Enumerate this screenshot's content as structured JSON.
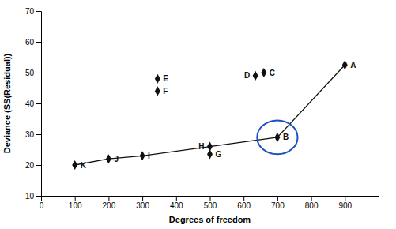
{
  "chart_data": {
    "type": "scatter",
    "xlabel": "Degrees of freedom",
    "ylabel": "Deviance (SS(Residual))",
    "xlim": [
      0,
      1000
    ],
    "ylim": [
      10,
      70
    ],
    "xticks": [
      0,
      100,
      200,
      300,
      400,
      500,
      600,
      700,
      800,
      900
    ],
    "yticks": [
      10,
      20,
      30,
      40,
      50,
      60,
      70
    ],
    "grid": false,
    "series": [
      {
        "type": "scatter",
        "marker": "diamond",
        "color": "#111111",
        "labels": [
          "A",
          "B",
          "C",
          "D",
          "E",
          "F",
          "G",
          "H",
          "I",
          "J",
          "K"
        ],
        "x": [
          900,
          700,
          660,
          635,
          345,
          345,
          500,
          500,
          300,
          200,
          100
        ],
        "values": [
          52.5,
          29,
          50,
          49,
          48,
          44,
          23.5,
          26,
          23,
          22,
          20
        ]
      },
      {
        "type": "line",
        "color": "#111111",
        "x": [
          100,
          200,
          300,
          500,
          700,
          900
        ],
        "values": [
          20,
          22,
          23,
          26,
          29,
          52.5
        ]
      }
    ],
    "annotations": [
      {
        "type": "ellipse",
        "x": 700,
        "y": 29,
        "rx": 60,
        "ry": 5.5,
        "color": "#1A4FC4"
      }
    ]
  }
}
